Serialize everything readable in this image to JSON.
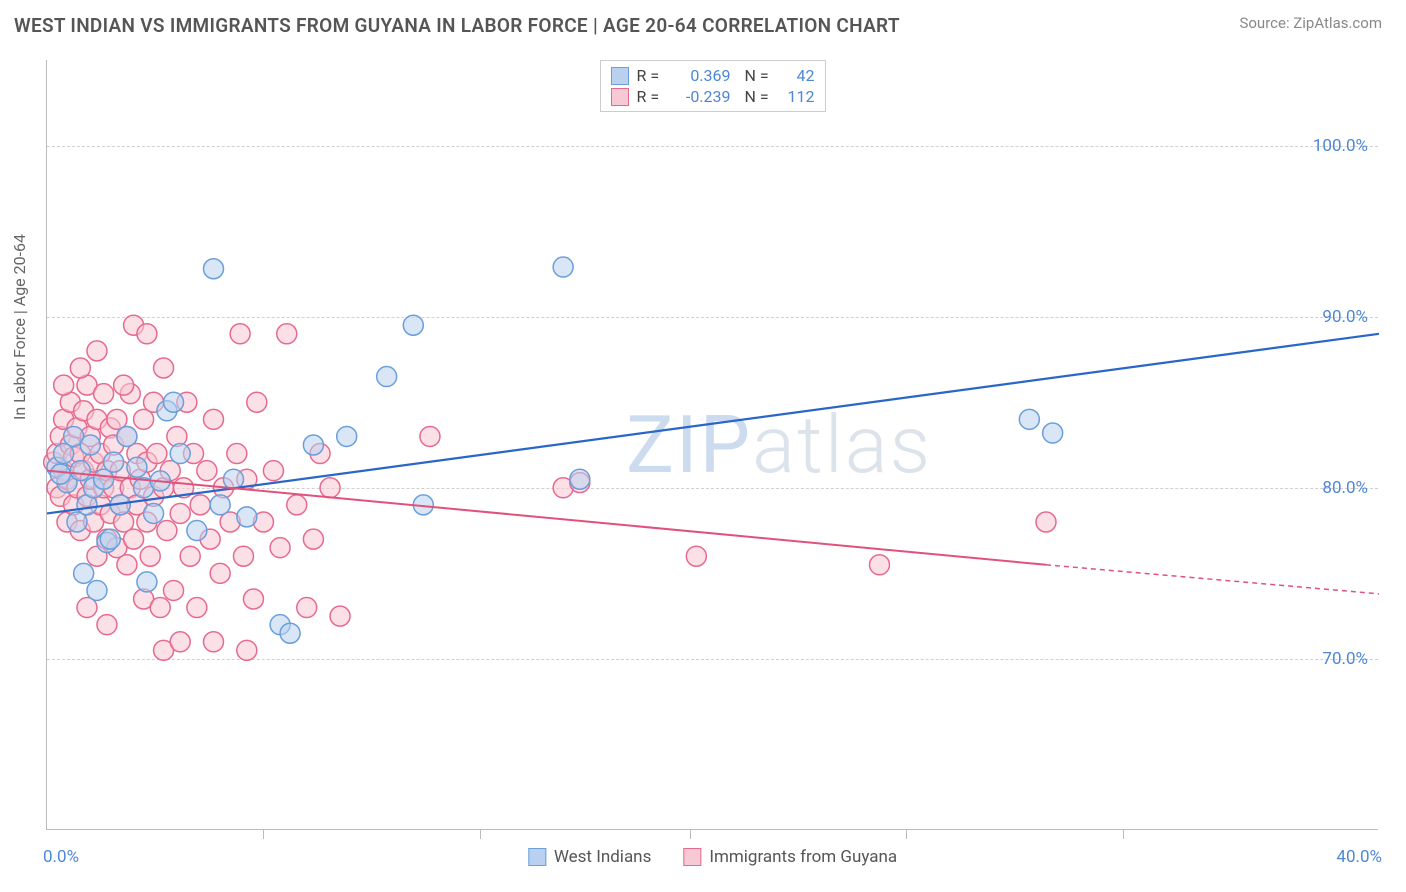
{
  "title": "WEST INDIAN VS IMMIGRANTS FROM GUYANA IN LABOR FORCE | AGE 20-64 CORRELATION CHART",
  "source": "Source: ZipAtlas.com",
  "ylabel": "In Labor Force | Age 20-64",
  "watermark_a": "ZIP",
  "watermark_b": "atlas",
  "chart": {
    "type": "scatter",
    "xlim": [
      0,
      40
    ],
    "ylim": [
      60,
      105
    ],
    "x_ticks": [
      0,
      40
    ],
    "x_tick_labels": [
      "0.0%",
      "40.0%"
    ],
    "x_minor_ticks": [
      6.5,
      13.0,
      19.3,
      25.8,
      32.3
    ],
    "y_gridlines": [
      70,
      80,
      90,
      100
    ],
    "y_tick_labels": [
      "70.0%",
      "80.0%",
      "90.0%",
      "100.0%"
    ],
    "background_color": "#ffffff",
    "grid_color": "#d0d0d0",
    "series": [
      {
        "name": "West Indians",
        "fill_color": "#b9d1ee",
        "stroke_color": "#6a9fdc",
        "marker_radius": 10,
        "fill_opacity": 0.55,
        "R": 0.369,
        "N": 42,
        "trend": {
          "x1": 0,
          "y1": 78.5,
          "x2": 40,
          "y2": 89.0,
          "color": "#2a66c8",
          "width": 2.2
        },
        "points": [
          [
            0.3,
            81.2
          ],
          [
            0.5,
            82.0
          ],
          [
            0.6,
            80.3
          ],
          [
            0.8,
            83.0
          ],
          [
            0.9,
            78.0
          ],
          [
            1.0,
            81.0
          ],
          [
            1.1,
            75.0
          ],
          [
            1.2,
            79.0
          ],
          [
            1.3,
            82.5
          ],
          [
            1.4,
            80.0
          ],
          [
            1.5,
            74.0
          ],
          [
            1.7,
            80.5
          ],
          [
            1.8,
            76.8
          ],
          [
            1.9,
            77.0
          ],
          [
            2.0,
            81.5
          ],
          [
            2.2,
            79.0
          ],
          [
            2.4,
            83.0
          ],
          [
            2.7,
            81.2
          ],
          [
            2.9,
            80.0
          ],
          [
            3.0,
            74.5
          ],
          [
            3.2,
            78.5
          ],
          [
            3.4,
            80.4
          ],
          [
            3.6,
            84.5
          ],
          [
            3.8,
            85.0
          ],
          [
            4.0,
            82.0
          ],
          [
            4.5,
            77.5
          ],
          [
            5.0,
            92.8
          ],
          [
            5.2,
            79.0
          ],
          [
            5.6,
            80.5
          ],
          [
            6.0,
            78.3
          ],
          [
            7.0,
            72.0
          ],
          [
            7.3,
            71.5
          ],
          [
            8.0,
            82.5
          ],
          [
            9.0,
            83.0
          ],
          [
            10.2,
            86.5
          ],
          [
            11.0,
            89.5
          ],
          [
            11.3,
            79.0
          ],
          [
            15.5,
            92.9
          ],
          [
            16.0,
            80.5
          ],
          [
            29.5,
            84.0
          ],
          [
            30.2,
            83.2
          ],
          [
            0.4,
            80.8
          ]
        ]
      },
      {
        "name": "Immigrants from Guyana",
        "fill_color": "#f7c9d4",
        "stroke_color": "#e76a8e",
        "marker_radius": 10,
        "fill_opacity": 0.55,
        "R": -0.239,
        "N": 112,
        "trend": {
          "x1": 0,
          "y1": 81.0,
          "x2": 30,
          "y2": 75.5,
          "color": "#e0527b",
          "width": 2,
          "extend_x2": 40,
          "extend_y2": 73.8
        },
        "points": [
          [
            0.2,
            81.5
          ],
          [
            0.3,
            82.0
          ],
          [
            0.3,
            80.0
          ],
          [
            0.4,
            83.0
          ],
          [
            0.4,
            79.5
          ],
          [
            0.5,
            81.0
          ],
          [
            0.5,
            84.0
          ],
          [
            0.6,
            80.5
          ],
          [
            0.6,
            78.0
          ],
          [
            0.7,
            82.5
          ],
          [
            0.7,
            85.0
          ],
          [
            0.8,
            81.8
          ],
          [
            0.8,
            79.0
          ],
          [
            0.9,
            83.5
          ],
          [
            0.9,
            80.0
          ],
          [
            1.0,
            82.0
          ],
          [
            1.0,
            77.5
          ],
          [
            1.1,
            84.5
          ],
          [
            1.1,
            81.0
          ],
          [
            1.2,
            79.5
          ],
          [
            1.2,
            86.0
          ],
          [
            1.3,
            80.5
          ],
          [
            1.3,
            83.0
          ],
          [
            1.4,
            78.0
          ],
          [
            1.4,
            81.5
          ],
          [
            1.5,
            84.0
          ],
          [
            1.5,
            76.0
          ],
          [
            1.6,
            82.0
          ],
          [
            1.6,
            79.0
          ],
          [
            1.7,
            80.0
          ],
          [
            1.7,
            85.5
          ],
          [
            1.8,
            77.0
          ],
          [
            1.8,
            81.0
          ],
          [
            1.9,
            83.5
          ],
          [
            1.9,
            78.5
          ],
          [
            2.0,
            80.0
          ],
          [
            2.0,
            82.5
          ],
          [
            2.1,
            76.5
          ],
          [
            2.1,
            84.0
          ],
          [
            2.2,
            79.0
          ],
          [
            2.2,
            81.0
          ],
          [
            2.3,
            78.0
          ],
          [
            2.4,
            83.0
          ],
          [
            2.4,
            75.5
          ],
          [
            2.5,
            80.0
          ],
          [
            2.5,
            85.5
          ],
          [
            2.6,
            77.0
          ],
          [
            2.7,
            82.0
          ],
          [
            2.7,
            79.0
          ],
          [
            2.8,
            80.5
          ],
          [
            2.9,
            84.0
          ],
          [
            2.9,
            73.5
          ],
          [
            3.0,
            78.0
          ],
          [
            3.0,
            81.5
          ],
          [
            3.1,
            76.0
          ],
          [
            3.2,
            85.0
          ],
          [
            3.2,
            79.5
          ],
          [
            3.3,
            82.0
          ],
          [
            3.4,
            73.0
          ],
          [
            3.5,
            80.0
          ],
          [
            3.5,
            87.0
          ],
          [
            3.6,
            77.5
          ],
          [
            3.7,
            81.0
          ],
          [
            3.8,
            74.0
          ],
          [
            3.9,
            83.0
          ],
          [
            4.0,
            78.5
          ],
          [
            4.1,
            80.0
          ],
          [
            4.2,
            85.0
          ],
          [
            4.3,
            76.0
          ],
          [
            4.4,
            82.0
          ],
          [
            4.5,
            73.0
          ],
          [
            4.6,
            79.0
          ],
          [
            4.8,
            81.0
          ],
          [
            4.9,
            77.0
          ],
          [
            5.0,
            84.0
          ],
          [
            5.2,
            75.0
          ],
          [
            5.3,
            80.0
          ],
          [
            5.5,
            78.0
          ],
          [
            5.7,
            82.0
          ],
          [
            5.8,
            89.0
          ],
          [
            5.9,
            76.0
          ],
          [
            6.0,
            80.5
          ],
          [
            6.2,
            73.5
          ],
          [
            6.3,
            85.0
          ],
          [
            6.5,
            78.0
          ],
          [
            6.8,
            81.0
          ],
          [
            7.0,
            76.5
          ],
          [
            7.2,
            89.0
          ],
          [
            7.5,
            79.0
          ],
          [
            7.8,
            73.0
          ],
          [
            8.0,
            77.0
          ],
          [
            8.2,
            82.0
          ],
          [
            8.5,
            80.0
          ],
          [
            8.8,
            72.5
          ],
          [
            2.6,
            89.5
          ],
          [
            3.0,
            89.0
          ],
          [
            3.5,
            70.5
          ],
          [
            4.0,
            71.0
          ],
          [
            5.0,
            71.0
          ],
          [
            6.0,
            70.5
          ],
          [
            0.5,
            86.0
          ],
          [
            1.0,
            87.0
          ],
          [
            1.5,
            88.0
          ],
          [
            11.5,
            83.0
          ],
          [
            15.5,
            80.0
          ],
          [
            16.0,
            80.3
          ],
          [
            19.5,
            76.0
          ],
          [
            25.0,
            75.5
          ],
          [
            30.0,
            78.0
          ],
          [
            1.2,
            73.0
          ],
          [
            1.8,
            72.0
          ],
          [
            2.3,
            86.0
          ]
        ]
      }
    ]
  },
  "bottom_legend": [
    {
      "label": "West Indians",
      "fill": "#b9d1ee",
      "stroke": "#6a9fdc"
    },
    {
      "label": "Immigrants from Guyana",
      "fill": "#f7c9d4",
      "stroke": "#e76a8e"
    }
  ]
}
